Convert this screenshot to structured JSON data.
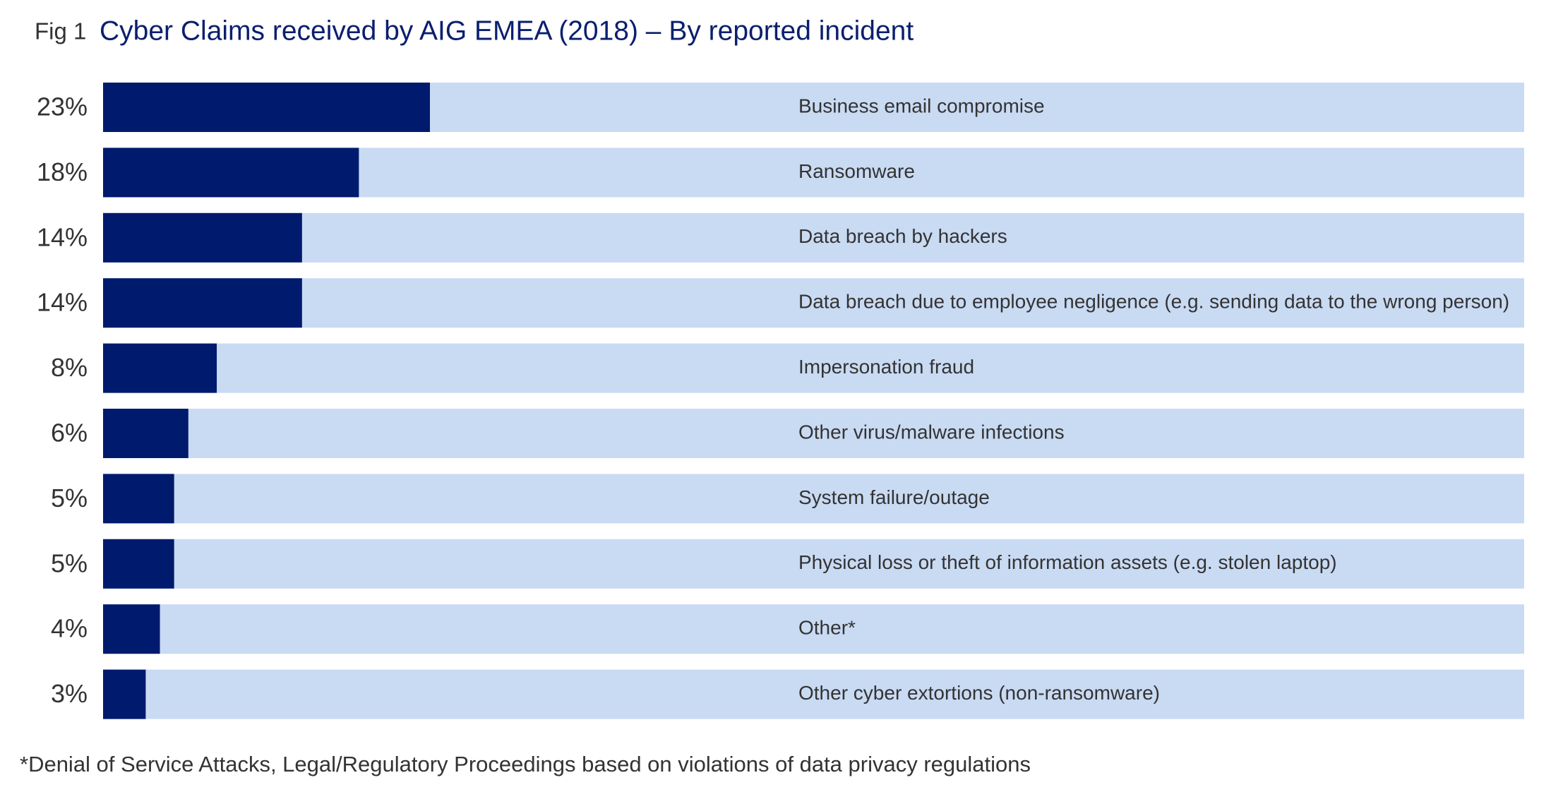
{
  "chart_data": {
    "type": "bar",
    "orientation": "horizontal",
    "figure_label": "Fig 1",
    "title": "Cyber Claims received by AIG EMEA (2018)  – By reported incident",
    "categories": [
      "Business email compromise",
      "Ransomware",
      "Data breach by hackers",
      "Data breach due to employee negligence (e.g. sending data to the wrong person)",
      "Impersonation fraud",
      "Other virus/malware infections",
      "System failure/outage",
      "Physical loss or theft of information assets (e.g. stolen laptop)",
      "Other*",
      "Other cyber extortions (non-ransomware)"
    ],
    "values": [
      23,
      18,
      14,
      14,
      8,
      6,
      5,
      5,
      4,
      3
    ],
    "value_labels": [
      "23%",
      "18%",
      "14%",
      "14%",
      "8%",
      "6%",
      "5%",
      "5%",
      "4%",
      "3%"
    ],
    "color": "#001a6e",
    "track_color": "#c9daf3",
    "xlim": [
      0,
      100
    ],
    "footnote": "*Denial of Service Attacks, Legal/Regulatory Proceedings based on violations of data privacy regulations"
  }
}
